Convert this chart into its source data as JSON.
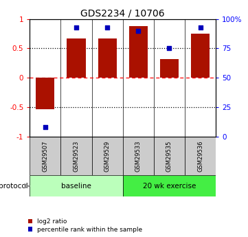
{
  "title": "GDS2234 / 10706",
  "categories": [
    "GSM29507",
    "GSM29523",
    "GSM29529",
    "GSM29533",
    "GSM29535",
    "GSM29536"
  ],
  "log2_ratio": [
    -0.53,
    0.67,
    0.67,
    0.88,
    0.32,
    0.75
  ],
  "percentile_rank": [
    8,
    93,
    93,
    90,
    75,
    93
  ],
  "bar_color": "#aa1100",
  "dot_color": "#0000bb",
  "ylim_left": [
    -1.0,
    1.0
  ],
  "yticks_left": [
    -1.0,
    -0.5,
    0.0,
    0.5,
    1.0
  ],
  "ytick_labels_left": [
    "-1",
    "-0.5",
    "0",
    "0.5",
    "1"
  ],
  "ylim_right": [
    0,
    100
  ],
  "yticks_right": [
    0,
    25,
    50,
    75,
    100
  ],
  "ytick_labels_right": [
    "0",
    "25",
    "50",
    "75",
    "100%"
  ],
  "protocol_groups": [
    {
      "label": "baseline",
      "indices": [
        0,
        1,
        2
      ],
      "color": "#bbffbb"
    },
    {
      "label": "20 wk exercise",
      "indices": [
        3,
        4,
        5
      ],
      "color": "#44ee44"
    }
  ],
  "protocol_label": "protocol",
  "hlines_dotted": [
    -0.5,
    0.5
  ],
  "hline_dashed_color": "red",
  "sample_box_color": "#cccccc",
  "bar_width": 0.6
}
